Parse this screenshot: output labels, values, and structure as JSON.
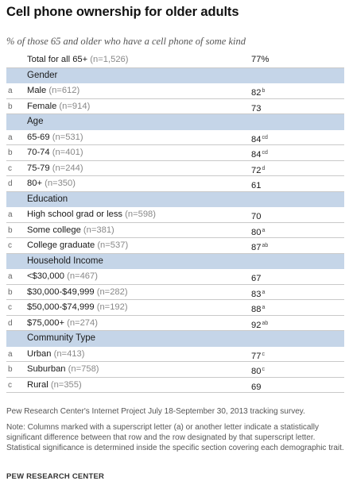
{
  "title": "Cell phone ownership for older adults",
  "subtitle": "% of those 65 and older who have a cell phone of some kind",
  "total": {
    "label": "Total for all 65+",
    "n": "(n=1,526)",
    "value": "77%",
    "sup": ""
  },
  "sections": [
    {
      "header": "Gender",
      "rows": [
        {
          "letter": "a",
          "label": "Male",
          "n": "(n=612)",
          "value": "82",
          "sup": "b"
        },
        {
          "letter": "b",
          "label": "Female",
          "n": "(n=914)",
          "value": "73",
          "sup": ""
        }
      ]
    },
    {
      "header": "Age",
      "rows": [
        {
          "letter": "a",
          "label": "65-69",
          "n": "(n=531)",
          "value": "84",
          "sup": "cd"
        },
        {
          "letter": "b",
          "label": "70-74",
          "n": "(n=401)",
          "value": "84",
          "sup": "cd"
        },
        {
          "letter": "c",
          "label": "75-79",
          "n": "(n=244)",
          "value": "72",
          "sup": "d"
        },
        {
          "letter": "d",
          "label": "80+",
          "n": "(n=350)",
          "value": "61",
          "sup": ""
        }
      ]
    },
    {
      "header": "Education",
      "rows": [
        {
          "letter": "a",
          "label": "High school grad or less",
          "n": "(n=598)",
          "value": "70",
          "sup": ""
        },
        {
          "letter": "b",
          "label": "Some college",
          "n": "(n=381)",
          "value": "80",
          "sup": "a"
        },
        {
          "letter": "c",
          "label": "College graduate",
          "n": "(n=537)",
          "value": "87",
          "sup": "ab"
        }
      ]
    },
    {
      "header": "Household Income",
      "rows": [
        {
          "letter": "a",
          "label": "<$30,000",
          "n": "(n=467)",
          "value": "67",
          "sup": ""
        },
        {
          "letter": "b",
          "label": "$30,000-$49,999",
          "n": "(n=282)",
          "value": "83",
          "sup": "a"
        },
        {
          "letter": "c",
          "label": "$50,000-$74,999",
          "n": "(n=192)",
          "value": "88",
          "sup": "a"
        },
        {
          "letter": "d",
          "label": "$75,000+",
          "n": "(n=274)",
          "value": "92",
          "sup": "ab"
        }
      ]
    },
    {
      "header": "Community Type",
      "rows": [
        {
          "letter": "a",
          "label": "Urban",
          "n": "(n=413)",
          "value": "77",
          "sup": "c"
        },
        {
          "letter": "b",
          "label": "Suburban",
          "n": "(n=758)",
          "value": "80",
          "sup": "c"
        },
        {
          "letter": "c",
          "label": "Rural",
          "n": "(n=355)",
          "value": "69",
          "sup": ""
        }
      ]
    }
  ],
  "source": "Pew Research Center's Internet Project July 18-September 30, 2013 tracking survey.",
  "note": "Note: Columns marked with a superscript letter (a) or another letter indicate a statistically significant difference between that row and the row designated by that superscript letter. Statistical significance is determined inside the specific section covering each demographic trait.",
  "brand": "PEW RESEARCH CENTER",
  "colors": {
    "header_band": "#c5d5e8",
    "rule": "#c9c9c9"
  }
}
